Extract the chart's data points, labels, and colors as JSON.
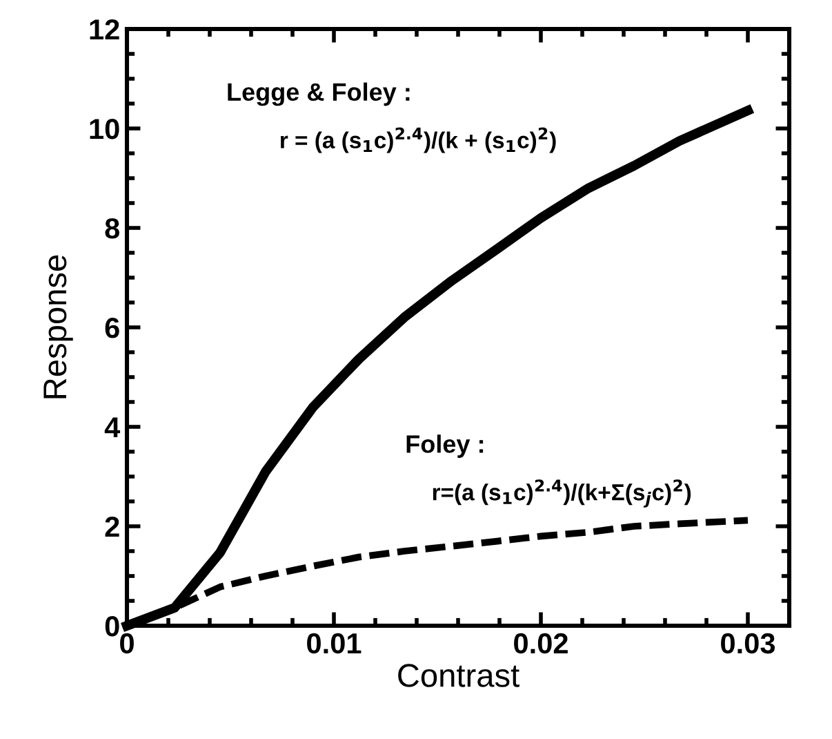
{
  "chart_data": {
    "type": "line",
    "xlabel": "Contrast",
    "ylabel": "Response",
    "x": [
      0,
      0.0023,
      0.0045,
      0.0067,
      0.009,
      0.0112,
      0.0134,
      0.0157,
      0.0179,
      0.02,
      0.0223,
      0.0245,
      0.0267,
      0.03
    ],
    "series": [
      {
        "color": "#000000",
        "line_style": "solid",
        "values": [
          0,
          0.36,
          1.47,
          3.1,
          4.4,
          5.36,
          6.2,
          6.94,
          7.58,
          8.2,
          8.8,
          9.25,
          9.75,
          10.36
        ]
      },
      {
        "color": "#000000",
        "line_style": "dashed",
        "values": [
          0,
          0.36,
          0.78,
          1.0,
          1.2,
          1.38,
          1.5,
          1.6,
          1.7,
          1.8,
          1.88,
          2.0,
          2.05,
          2.12
        ]
      }
    ],
    "xlim": [
      0,
      0.032
    ],
    "xticks": [
      0,
      0.01,
      0.02,
      0.03
    ],
    "ylim": [
      0,
      12
    ],
    "yticks": [
      0,
      2,
      4,
      6,
      8,
      10,
      12
    ],
    "annotations": [
      "Legge & Foley :",
      "r = (a (s$_{1}$c)$^{2.4}$)/(k + (s$_{1}$c)$^{2}$)",
      "Foley :",
      "r=(a (s$_{1}$c)$^{2.4}$)/(k+Σ(s$_{j}$c)$^{2}$)"
    ],
    "grid": false,
    "marker": "none"
  }
}
